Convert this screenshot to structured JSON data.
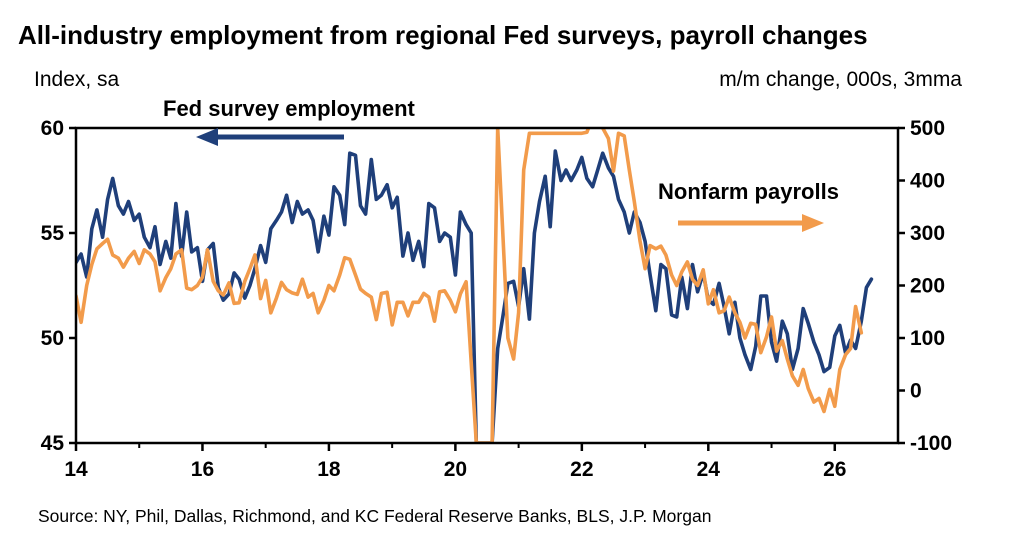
{
  "chart_data": {
    "type": "line",
    "title": "All-industry employment from regional Fed surveys, payroll changes",
    "left_axis": {
      "label": "Index, sa",
      "ylim": [
        45,
        60
      ],
      "ticks": [
        "45",
        "50",
        "55",
        "60"
      ]
    },
    "right_axis": {
      "label": "m/m change, 000s, 3mma",
      "ylim": [
        -100,
        500
      ],
      "ticks": [
        "-100",
        "0",
        "100",
        "200",
        "300",
        "400",
        "500"
      ]
    },
    "x_axis": {
      "xlim": [
        2014,
        2027
      ],
      "ticks": [
        "14",
        "16",
        "18",
        "20",
        "22",
        "24",
        "26"
      ],
      "tick_values": [
        2014,
        2016,
        2018,
        2020,
        2022,
        2024,
        2026
      ]
    },
    "annotations": {
      "fed": "Fed survey employment",
      "nfp": "Nonfarm payrolls"
    },
    "source": "Source: NY, Phil, Dallas, Richmond, and KC Federal Reserve Banks, BLS, J.P. Morgan",
    "colors": {
      "fed": "#1f3f7a",
      "nfp": "#f29b4b"
    },
    "series": [
      {
        "name": "Fed survey employment",
        "axis": "left",
        "color": "#1f3f7a",
        "points": [
          [
            2014.0,
            53.6
          ],
          [
            2014.08,
            54.0
          ],
          [
            2014.17,
            52.9
          ],
          [
            2014.25,
            55.2
          ],
          [
            2014.33,
            56.1
          ],
          [
            2014.42,
            54.8
          ],
          [
            2014.5,
            56.6
          ],
          [
            2014.58,
            57.6
          ],
          [
            2014.67,
            56.3
          ],
          [
            2014.75,
            55.9
          ],
          [
            2014.83,
            56.5
          ],
          [
            2014.92,
            55.6
          ],
          [
            2015.0,
            55.9
          ],
          [
            2015.08,
            54.8
          ],
          [
            2015.17,
            54.3
          ],
          [
            2015.25,
            55.3
          ],
          [
            2015.33,
            53.5
          ],
          [
            2015.42,
            54.6
          ],
          [
            2015.5,
            53.8
          ],
          [
            2015.58,
            56.4
          ],
          [
            2015.67,
            53.9
          ],
          [
            2015.75,
            56.0
          ],
          [
            2015.83,
            54.1
          ],
          [
            2015.92,
            54.3
          ],
          [
            2016.0,
            52.7
          ],
          [
            2016.08,
            54.2
          ],
          [
            2016.17,
            54.5
          ],
          [
            2016.25,
            52.4
          ],
          [
            2016.33,
            51.8
          ],
          [
            2016.42,
            52.1
          ],
          [
            2016.5,
            53.1
          ],
          [
            2016.58,
            52.8
          ],
          [
            2016.67,
            51.9
          ],
          [
            2016.75,
            52.5
          ],
          [
            2016.83,
            53.3
          ],
          [
            2016.92,
            54.4
          ],
          [
            2017.0,
            53.6
          ],
          [
            2017.08,
            55.2
          ],
          [
            2017.17,
            55.6
          ],
          [
            2017.25,
            56.0
          ],
          [
            2017.33,
            56.8
          ],
          [
            2017.42,
            55.5
          ],
          [
            2017.5,
            56.5
          ],
          [
            2017.58,
            55.9
          ],
          [
            2017.67,
            56.1
          ],
          [
            2017.75,
            55.6
          ],
          [
            2017.83,
            54.1
          ],
          [
            2017.92,
            55.8
          ],
          [
            2018.0,
            54.9
          ],
          [
            2018.08,
            57.2
          ],
          [
            2018.17,
            56.8
          ],
          [
            2018.25,
            55.4
          ],
          [
            2018.33,
            58.8
          ],
          [
            2018.42,
            58.7
          ],
          [
            2018.5,
            56.3
          ],
          [
            2018.58,
            55.9
          ],
          [
            2018.67,
            58.5
          ],
          [
            2018.75,
            56.6
          ],
          [
            2018.83,
            56.8
          ],
          [
            2018.92,
            57.3
          ],
          [
            2019.0,
            56.2
          ],
          [
            2019.08,
            56.7
          ],
          [
            2019.17,
            53.9
          ],
          [
            2019.25,
            55.0
          ],
          [
            2019.33,
            53.7
          ],
          [
            2019.42,
            54.6
          ],
          [
            2019.5,
            53.4
          ],
          [
            2019.58,
            56.4
          ],
          [
            2019.67,
            56.2
          ],
          [
            2019.75,
            54.6
          ],
          [
            2019.83,
            55.0
          ],
          [
            2019.92,
            54.8
          ],
          [
            2020.0,
            53.0
          ],
          [
            2020.08,
            56.0
          ],
          [
            2020.17,
            55.4
          ],
          [
            2020.25,
            55.0
          ],
          [
            2020.33,
            45.0
          ],
          [
            2020.58,
            45.0
          ],
          [
            2020.67,
            49.5
          ],
          [
            2020.75,
            51.0
          ],
          [
            2020.83,
            52.6
          ],
          [
            2020.92,
            52.7
          ],
          [
            2021.0,
            51.5
          ],
          [
            2021.08,
            53.3
          ],
          [
            2021.17,
            50.9
          ],
          [
            2021.25,
            55.0
          ],
          [
            2021.33,
            56.5
          ],
          [
            2021.42,
            57.7
          ],
          [
            2021.5,
            55.3
          ],
          [
            2021.58,
            58.9
          ],
          [
            2021.67,
            57.5
          ],
          [
            2021.75,
            58.0
          ],
          [
            2021.83,
            57.5
          ],
          [
            2021.92,
            58.0
          ],
          [
            2022.0,
            58.6
          ],
          [
            2022.08,
            57.6
          ],
          [
            2022.17,
            57.2
          ],
          [
            2022.25,
            58.0
          ],
          [
            2022.33,
            58.8
          ],
          [
            2022.42,
            58.1
          ],
          [
            2022.5,
            57.7
          ],
          [
            2022.58,
            56.6
          ],
          [
            2022.67,
            56.0
          ],
          [
            2022.75,
            55.0
          ],
          [
            2022.83,
            56.0
          ],
          [
            2022.92,
            55.5
          ],
          [
            2023.0,
            54.6
          ],
          [
            2023.08,
            53.0
          ],
          [
            2023.17,
            51.3
          ],
          [
            2023.25,
            53.5
          ],
          [
            2023.33,
            53.3
          ],
          [
            2023.42,
            51.1
          ],
          [
            2023.5,
            51.0
          ],
          [
            2023.58,
            52.9
          ],
          [
            2023.67,
            51.4
          ],
          [
            2023.75,
            53.5
          ],
          [
            2023.83,
            52.2
          ],
          [
            2023.92,
            53.1
          ],
          [
            2024.0,
            51.8
          ],
          [
            2024.08,
            51.6
          ],
          [
            2024.17,
            52.6
          ],
          [
            2024.25,
            51.5
          ],
          [
            2024.33,
            50.2
          ],
          [
            2024.42,
            51.7
          ],
          [
            2024.5,
            50.0
          ],
          [
            2024.58,
            49.2
          ],
          [
            2024.67,
            48.5
          ],
          [
            2024.75,
            49.6
          ],
          [
            2024.83,
            52.0
          ],
          [
            2024.92,
            52.0
          ],
          [
            2025.0,
            49.8
          ],
          [
            2025.08,
            48.9
          ],
          [
            2025.17,
            50.8
          ],
          [
            2025.25,
            50.2
          ],
          [
            2025.33,
            48.5
          ],
          [
            2025.42,
            49.5
          ],
          [
            2025.5,
            51.4
          ],
          [
            2025.58,
            50.7
          ],
          [
            2025.67,
            49.8
          ],
          [
            2025.75,
            49.2
          ],
          [
            2025.83,
            48.4
          ],
          [
            2025.92,
            48.6
          ],
          [
            2026.0,
            50.1
          ],
          [
            2026.08,
            50.6
          ],
          [
            2026.17,
            49.3
          ],
          [
            2026.25,
            49.9
          ],
          [
            2026.33,
            49.5
          ],
          [
            2026.42,
            50.8
          ],
          [
            2026.5,
            52.4
          ],
          [
            2026.58,
            52.8
          ]
        ]
      },
      {
        "name": "Nonfarm payrolls",
        "axis": "right",
        "color": "#f29b4b",
        "points": [
          [
            2014.0,
            180
          ],
          [
            2014.08,
            130
          ],
          [
            2014.17,
            200
          ],
          [
            2014.25,
            240
          ],
          [
            2014.33,
            270
          ],
          [
            2014.42,
            280
          ],
          [
            2014.5,
            288
          ],
          [
            2014.58,
            258
          ],
          [
            2014.67,
            252
          ],
          [
            2014.75,
            235
          ],
          [
            2014.83,
            252
          ],
          [
            2014.92,
            265
          ],
          [
            2015.0,
            242
          ],
          [
            2015.08,
            268
          ],
          [
            2015.17,
            260
          ],
          [
            2015.25,
            245
          ],
          [
            2015.33,
            190
          ],
          [
            2015.42,
            215
          ],
          [
            2015.5,
            232
          ],
          [
            2015.58,
            260
          ],
          [
            2015.67,
            268
          ],
          [
            2015.75,
            195
          ],
          [
            2015.83,
            192
          ],
          [
            2015.92,
            200
          ],
          [
            2016.0,
            216
          ],
          [
            2016.08,
            268
          ],
          [
            2016.17,
            208
          ],
          [
            2016.25,
            190
          ],
          [
            2016.33,
            182
          ],
          [
            2016.42,
            205
          ],
          [
            2016.5,
            166
          ],
          [
            2016.58,
            167
          ],
          [
            2016.67,
            208
          ],
          [
            2016.75,
            232
          ],
          [
            2016.83,
            258
          ],
          [
            2016.92,
            175
          ],
          [
            2017.0,
            210
          ],
          [
            2017.08,
            148
          ],
          [
            2017.17,
            176
          ],
          [
            2017.25,
            206
          ],
          [
            2017.33,
            192
          ],
          [
            2017.42,
            186
          ],
          [
            2017.5,
            183
          ],
          [
            2017.58,
            212
          ],
          [
            2017.67,
            178
          ],
          [
            2017.75,
            185
          ],
          [
            2017.83,
            148
          ],
          [
            2017.92,
            172
          ],
          [
            2018.0,
            200
          ],
          [
            2018.08,
            190
          ],
          [
            2018.17,
            220
          ],
          [
            2018.25,
            253
          ],
          [
            2018.33,
            250
          ],
          [
            2018.42,
            220
          ],
          [
            2018.5,
            193
          ],
          [
            2018.58,
            185
          ],
          [
            2018.67,
            178
          ],
          [
            2018.75,
            135
          ],
          [
            2018.83,
            185
          ],
          [
            2018.92,
            187
          ],
          [
            2019.0,
            125
          ],
          [
            2019.08,
            168
          ],
          [
            2019.17,
            168
          ],
          [
            2019.25,
            142
          ],
          [
            2019.33,
            168
          ],
          [
            2019.42,
            168
          ],
          [
            2019.5,
            185
          ],
          [
            2019.58,
            178
          ],
          [
            2019.67,
            132
          ],
          [
            2019.75,
            188
          ],
          [
            2019.83,
            190
          ],
          [
            2019.92,
            172
          ],
          [
            2020.0,
            150
          ],
          [
            2020.08,
            184
          ],
          [
            2020.17,
            207
          ],
          [
            2020.33,
            -100
          ],
          [
            2020.58,
            -100
          ],
          [
            2020.67,
            500
          ],
          [
            2020.83,
            100
          ],
          [
            2020.92,
            60
          ],
          [
            2021.0,
            148
          ],
          [
            2021.08,
            420
          ],
          [
            2021.17,
            490
          ],
          [
            2022.0,
            490
          ],
          [
            2022.08,
            492
          ],
          [
            2022.17,
            520
          ],
          [
            2022.25,
            520
          ],
          [
            2022.33,
            500
          ],
          [
            2022.42,
            480
          ],
          [
            2022.5,
            418
          ],
          [
            2022.58,
            490
          ],
          [
            2022.67,
            485
          ],
          [
            2022.75,
            420
          ],
          [
            2022.83,
            360
          ],
          [
            2022.92,
            285
          ],
          [
            2023.0,
            232
          ],
          [
            2023.08,
            276
          ],
          [
            2023.17,
            270
          ],
          [
            2023.25,
            275
          ],
          [
            2023.33,
            258
          ],
          [
            2023.42,
            220
          ],
          [
            2023.5,
            200
          ],
          [
            2023.58,
            226
          ],
          [
            2023.67,
            245
          ],
          [
            2023.75,
            212
          ],
          [
            2023.83,
            200
          ],
          [
            2023.92,
            230
          ],
          [
            2024.0,
            165
          ],
          [
            2024.08,
            192
          ],
          [
            2024.17,
            148
          ],
          [
            2024.25,
            152
          ],
          [
            2024.33,
            178
          ],
          [
            2024.42,
            148
          ],
          [
            2024.5,
            130
          ],
          [
            2024.58,
            100
          ],
          [
            2024.67,
            128
          ],
          [
            2024.75,
            126
          ],
          [
            2024.83,
            72
          ],
          [
            2024.92,
            102
          ],
          [
            2025.0,
            140
          ],
          [
            2025.08,
            75
          ],
          [
            2025.17,
            95
          ],
          [
            2025.25,
            60
          ],
          [
            2025.33,
            28
          ],
          [
            2025.42,
            10
          ],
          [
            2025.5,
            40
          ],
          [
            2025.58,
            4
          ],
          [
            2025.67,
            -22
          ],
          [
            2025.75,
            -15
          ],
          [
            2025.83,
            -40
          ],
          [
            2025.92,
            2
          ],
          [
            2026.0,
            -30
          ],
          [
            2026.08,
            40
          ],
          [
            2026.17,
            68
          ],
          [
            2026.25,
            80
          ],
          [
            2026.33,
            160
          ],
          [
            2026.42,
            110
          ]
        ]
      }
    ]
  }
}
